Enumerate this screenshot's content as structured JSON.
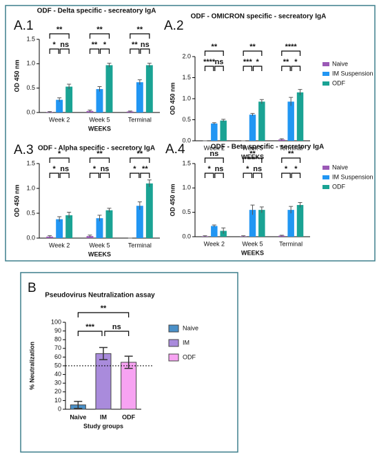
{
  "chart_data": [
    {
      "type": "grouped_bar",
      "panel": "A.1",
      "title": "ODF - Delta specific - secreatory IgA",
      "y_label": "OD 450 nm",
      "x_label": "WEEKS",
      "categories": [
        "Week 2",
        "Week 5",
        "Terminal"
      ],
      "series": [
        {
          "name": "Naive",
          "color": "#9b59b6",
          "values": [
            0.01,
            0.03,
            0.02
          ],
          "errors": [
            0.01,
            0.02,
            0.01
          ]
        },
        {
          "name": "IM Suspension",
          "color": "#2196f3",
          "values": [
            0.26,
            0.48,
            0.62
          ],
          "errors": [
            0.04,
            0.05,
            0.05
          ]
        },
        {
          "name": "ODF",
          "color": "#1aa394",
          "values": [
            0.53,
            0.97,
            0.97
          ],
          "errors": [
            0.05,
            0.04,
            0.04
          ]
        }
      ],
      "ylim": [
        0,
        1.5
      ],
      "yticks": [
        {
          "value": 0,
          "label": "0.0"
        },
        0.5,
        {
          "value": 1,
          "label": "1.0"
        },
        1.5
      ],
      "significance": [
        [
          "**",
          "*",
          "ns"
        ],
        [
          "**",
          "**",
          "*"
        ],
        [
          "**",
          "**",
          "ns"
        ]
      ]
    },
    {
      "type": "grouped_bar",
      "panel": "A.2",
      "title": "ODF - OMICRON specific - secreatory IgA",
      "y_label": "OD 450 nm",
      "x_label": "WEEKS",
      "categories": [
        "Week 2",
        "Week 5",
        "Terminal"
      ],
      "series": [
        {
          "name": "Naive",
          "color": "#9b59b6",
          "values": [
            0.0,
            0.0,
            0.03
          ],
          "errors": [
            0.0,
            0.0,
            0.02
          ]
        },
        {
          "name": "IM Suspension",
          "color": "#2196f3",
          "values": [
            0.41,
            0.62,
            0.93
          ],
          "errors": [
            0.02,
            0.03,
            0.1
          ]
        },
        {
          "name": "ODF",
          "color": "#1aa394",
          "values": [
            0.48,
            0.93,
            1.15
          ],
          "errors": [
            0.03,
            0.05,
            0.07
          ]
        }
      ],
      "ylim": [
        0,
        2
      ],
      "yticks": [
        {
          "value": 0,
          "label": "0.0"
        },
        0.5,
        {
          "value": 1,
          "label": "1.0"
        },
        1.5,
        {
          "value": 2,
          "label": "2.0"
        }
      ],
      "legend": "right",
      "significance": [
        [
          "**",
          "****",
          "ns"
        ],
        [
          "**",
          "***",
          "*"
        ],
        [
          "****",
          "**",
          "*"
        ]
      ]
    },
    {
      "type": "grouped_bar",
      "panel": "A.3",
      "title": "ODF - Alpha specific - secretory IgA",
      "y_label": "OD 450 nm",
      "x_label": "WEEKS",
      "categories": [
        "Week 2",
        "Week 5",
        "Terminal"
      ],
      "series": [
        {
          "name": "Naive",
          "color": "#9b59b6",
          "values": [
            0.03,
            0.04,
            0.0
          ],
          "errors": [
            0.02,
            0.02,
            0.0
          ]
        },
        {
          "name": "IM Suspension",
          "color": "#2196f3",
          "values": [
            0.38,
            0.4,
            0.65
          ],
          "errors": [
            0.05,
            0.06,
            0.08
          ]
        },
        {
          "name": "ODF",
          "color": "#1aa394",
          "values": [
            0.46,
            0.56,
            1.1
          ],
          "errors": [
            0.06,
            0.04,
            0.07
          ]
        }
      ],
      "ylim": [
        0,
        1.5
      ],
      "yticks": [
        {
          "value": 0,
          "label": "0.0"
        },
        0.5,
        {
          "value": 1,
          "label": "1.0"
        },
        1.5
      ],
      "significance": [
        [
          "*",
          "*",
          "ns"
        ],
        [
          "**",
          "*",
          "ns"
        ],
        [
          "**",
          "*",
          "**"
        ]
      ]
    },
    {
      "type": "grouped_bar",
      "panel": "A.4",
      "title": "ODF - Beta specific - secretory IgA",
      "y_label": "OD 450 nm",
      "x_label": "WEEKS",
      "categories": [
        "Week 2",
        "Week 5",
        "Terminal"
      ],
      "series": [
        {
          "name": "Naive",
          "color": "#9b59b6",
          "values": [
            0.01,
            0.01,
            0.02
          ],
          "errors": [
            0.01,
            0.01,
            0.01
          ]
        },
        {
          "name": "IM Suspension",
          "color": "#2196f3",
          "values": [
            0.22,
            0.55,
            0.55
          ],
          "errors": [
            0.02,
            0.1,
            0.07
          ]
        },
        {
          "name": "ODF",
          "color": "#1aa394",
          "values": [
            0.12,
            0.55,
            0.65
          ],
          "errors": [
            0.06,
            0.06,
            0.05
          ]
        }
      ],
      "ylim": [
        0,
        1.5
      ],
      "yticks": [
        {
          "value": 0,
          "label": "0.0"
        },
        0.5,
        {
          "value": 1,
          "label": "1.0"
        },
        1.5
      ],
      "legend": "right",
      "significance": [
        [
          "ns",
          "*",
          "ns"
        ],
        [
          "**",
          "*",
          "ns"
        ],
        [
          "**",
          "*",
          "*"
        ]
      ]
    },
    {
      "type": "bar",
      "panel": "B",
      "title": "Pseudovirus Neutralization assay",
      "y_label": "% Neutralization",
      "x_label": "Study groups",
      "categories": [
        "Naive",
        "IM",
        "ODF"
      ],
      "values": [
        5,
        64,
        54
      ],
      "errors": [
        4,
        7,
        7
      ],
      "colors": [
        "#4a90c8",
        "#a98bdc",
        "#f7a3f2"
      ],
      "ylim": [
        0,
        100
      ],
      "yticks": [
        0,
        10,
        20,
        30,
        40,
        50,
        60,
        70,
        80,
        90,
        100
      ],
      "reference_line": 50,
      "legend": "right",
      "significance": [
        [
          "**",
          "***",
          "ns"
        ]
      ]
    }
  ]
}
